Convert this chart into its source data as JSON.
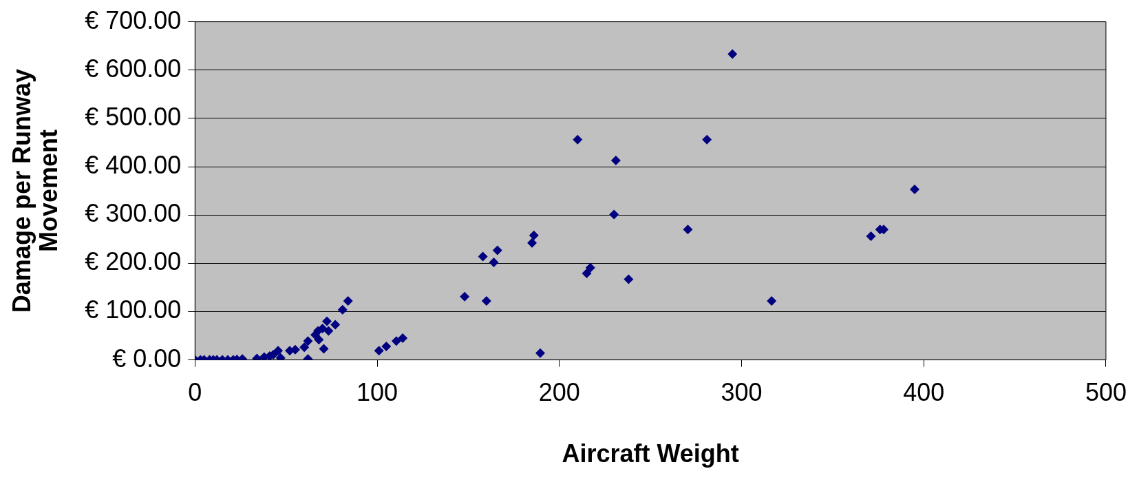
{
  "chart_data": {
    "type": "scatter",
    "xlabel": "Aircraft Weight",
    "ylabel": "Damage per Runway Movement",
    "marker": "diamond",
    "grid": "y",
    "legend": false,
    "xlim": [
      0,
      500
    ],
    "xticks": [
      0,
      100,
      200,
      300,
      400,
      500
    ],
    "ylim": [
      0,
      700
    ],
    "yticks": [
      {
        "value": 0,
        "label": "€ 0.00"
      },
      {
        "value": 100,
        "label": "€ 100.00"
      },
      {
        "value": 200,
        "label": "€ 200.00"
      },
      {
        "value": 300,
        "label": "€ 300.00"
      },
      {
        "value": 400,
        "label": "€ 400.00"
      },
      {
        "value": 500,
        "label": "€ 500.00"
      },
      {
        "value": 600,
        "label": "€ 600.00"
      },
      {
        "value": 700,
        "label": "€ 700.00"
      }
    ],
    "series": [
      {
        "color": "#000080",
        "x": [
          0,
          3,
          5,
          8,
          10,
          12,
          15,
          18,
          21,
          23,
          26,
          34,
          38,
          41,
          43,
          45.6,
          47,
          52,
          55,
          60,
          62,
          62,
          66,
          67.5,
          68,
          70,
          70.7,
          72.4,
          73.3,
          77,
          81,
          84,
          101,
          105,
          110.5,
          114,
          148,
          158,
          160,
          164,
          166,
          185,
          186,
          189.5,
          210,
          215,
          217,
          230,
          231,
          238,
          270.5,
          281,
          295,
          316.5,
          371,
          376,
          378,
          395
        ],
        "values": [
          0,
          0,
          0,
          0,
          0,
          0,
          0,
          0,
          0,
          1,
          2,
          3,
          6,
          8,
          11,
          19,
          4,
          19,
          21,
          26,
          39,
          2,
          52,
          60,
          42,
          65,
          23,
          80,
          60,
          73,
          104,
          122,
          19,
          28,
          39,
          45,
          131,
          214,
          122,
          202,
          227,
          242,
          258,
          14,
          456,
          179,
          191,
          301,
          413,
          167,
          270,
          456,
          633,
          122,
          256,
          270,
          270,
          353
        ]
      }
    ]
  }
}
